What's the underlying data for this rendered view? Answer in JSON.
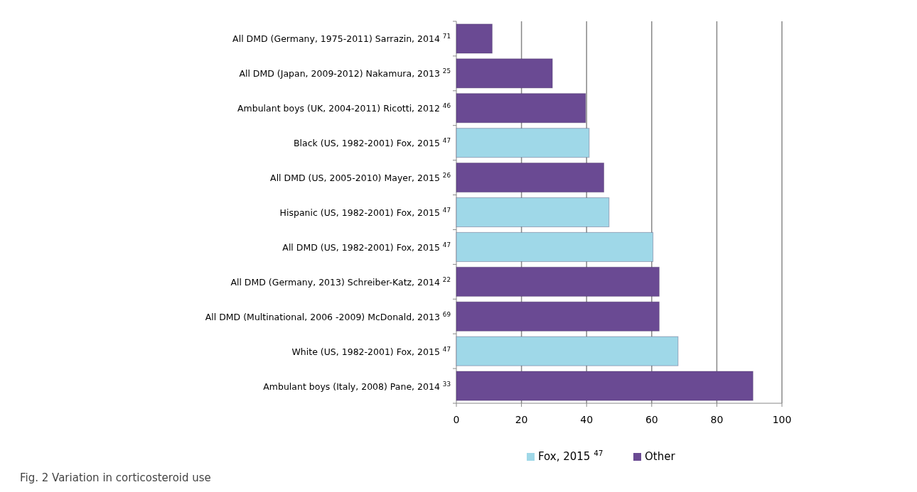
{
  "chart_data": {
    "type": "bar",
    "orientation": "horizontal",
    "stacked": true,
    "categories": [
      "All DMD (Germany, 1975-2011) Sarrazin, 2014 $^{71}$",
      "All DMD (Japan, 2009-2012) Nakamura, 2013 $^{25}$",
      "Ambulant boys (UK, 2004-2011) Ricotti, 2012 $^{46}$",
      "Black (US, 1982-2001) Fox, 2015 $^{47}$",
      "All DMD (US, 2005-2010) Mayer, 2015 $^{26}$",
      "Hispanic (US, 1982-2001) Fox, 2015  $^{47}$",
      "All DMD (US, 1982-2001) Fox, 2015  $^{47}$",
      "All DMD (Germany, 2013) Schreiber-Katz, 2014 $^{22}$",
      "All DMD (Multinational, 2006 -2009) McDonald, 2013 $^{69}$",
      "White (US, 1982-2001) Fox, 2015  $^{47}$",
      "Ambulant boys (Italy, 2008) Pane, 2014 $^{33}$"
    ],
    "series": [
      {
        "name": "Fox, 2015 $^{47}$",
        "color": "#9fd8e8",
        "values": [
          null,
          null,
          null,
          40.8,
          null,
          46.9,
          60.4,
          null,
          null,
          68.1,
          null
        ]
      },
      {
        "name": "Other",
        "color": "#6a4a93",
        "values": [
          11,
          29.5,
          39.7,
          null,
          45.3,
          null,
          null,
          62.3,
          62.3,
          null,
          91.1
        ]
      }
    ],
    "xlim": [
      0,
      100
    ],
    "xticks": [
      0,
      20,
      40,
      60,
      80,
      100
    ],
    "grid": "x",
    "legend": "bottom",
    "annotations": [
      "Fig. 2 Variation in corticosteroid use"
    ]
  }
}
